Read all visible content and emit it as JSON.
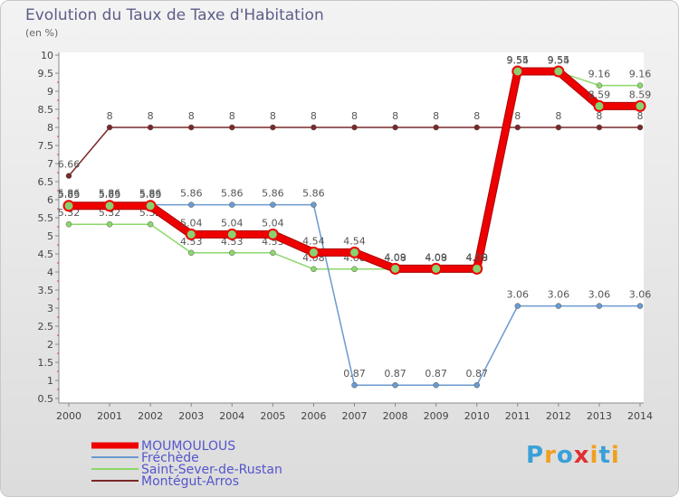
{
  "header": {
    "title": "Evolution du Taux de Taxe d'Habitation",
    "subtitle": "(en %)"
  },
  "brand": {
    "letters": [
      "P",
      "r",
      "o",
      "x",
      "i",
      "t",
      "i"
    ],
    "colors": [
      "#3aa0d8",
      "#f0a020",
      "#3aa0d8",
      "#e03030",
      "#f0a020",
      "#3aa0d8",
      "#f0a020"
    ]
  },
  "chart_data": {
    "type": "line",
    "x": [
      "2000",
      "2001",
      "2002",
      "2003",
      "2004",
      "2005",
      "2006",
      "2007",
      "2008",
      "2009",
      "2010",
      "2011",
      "2012",
      "2013",
      "2014"
    ],
    "y_ticks": [
      "10",
      "9.5",
      "9",
      "8.5",
      "8",
      "7.5",
      "7",
      "6.5",
      "6",
      "5.5",
      "5",
      "4.5",
      "4",
      "3.5",
      "3",
      "2.5",
      "2",
      "1.5",
      "1",
      "0.5"
    ],
    "ylim": [
      0.5,
      10
    ],
    "grid": false,
    "legend_position": "bottom-left",
    "series": [
      {
        "name": "Montégut-Arros",
        "color": "#7a2828",
        "width": 1.5,
        "values": [
          6.66,
          8,
          8,
          8,
          8,
          8,
          8,
          8,
          8,
          8,
          8,
          8,
          8,
          8,
          8
        ],
        "labels": [
          "6.66",
          "8",
          "8",
          "8",
          "8",
          "8",
          "8",
          "8",
          "8",
          "8",
          "8",
          "8",
          "8",
          "8",
          "8"
        ]
      },
      {
        "name": "Saint-Sever-de-Rustan",
        "color": "#8cd86a",
        "width": 1.5,
        "values": [
          5.32,
          5.32,
          5.32,
          4.53,
          4.53,
          4.53,
          4.08,
          4.08,
          4.08,
          4.08,
          4.08,
          9.54,
          9.54,
          9.16,
          9.16
        ],
        "labels": [
          "5.32",
          "5.32",
          "5.32",
          "4.53",
          "4.53",
          "4.53",
          "4.08",
          "4.08",
          "4.08",
          "4.08",
          "4.08",
          "9.54",
          "9.54",
          "9.16",
          "9.16"
        ]
      },
      {
        "name": "Fréchède",
        "color": "#6a9ad0",
        "width": 1.5,
        "values": [
          5.86,
          5.86,
          5.86,
          5.86,
          5.86,
          5.86,
          5.86,
          0.87,
          0.87,
          0.87,
          0.87,
          3.06,
          3.06,
          3.06,
          3.06
        ],
        "labels": [
          "5.86",
          "5.86",
          "5.86",
          "5.86",
          "5.86",
          "5.86",
          "5.86",
          "0.87",
          "0.87",
          "0.87",
          "0.87",
          "3.06",
          "3.06",
          "3.06",
          "3.06"
        ]
      },
      {
        "name": "MOUMOULOUS",
        "color": "#ee0000",
        "width": 7,
        "values": [
          5.83,
          5.83,
          5.83,
          5.04,
          5.04,
          5.04,
          4.54,
          4.54,
          4.09,
          4.09,
          4.09,
          9.55,
          9.55,
          8.59,
          8.59
        ],
        "labels": [
          "5.83",
          "5.83",
          "5.83",
          "5.04",
          "5.04",
          "5.04",
          "4.54",
          "4.54",
          "4.09",
          "4.09",
          "4.09",
          "9.55",
          "9.55",
          "8.59",
          "8.59"
        ]
      }
    ],
    "legend": [
      {
        "name": "MOUMOULOUS",
        "color": "#ee0000",
        "text_color": "#5555cc"
      },
      {
        "name": "Fréchède",
        "color": "#6a9ad0",
        "text_color": "#5555cc"
      },
      {
        "name": "Saint-Sever-de-Rustan",
        "color": "#8cd86a",
        "text_color": "#5555cc"
      },
      {
        "name": "Montégut-Arros",
        "color": "#7a2828",
        "text_color": "#5555cc"
      }
    ]
  }
}
